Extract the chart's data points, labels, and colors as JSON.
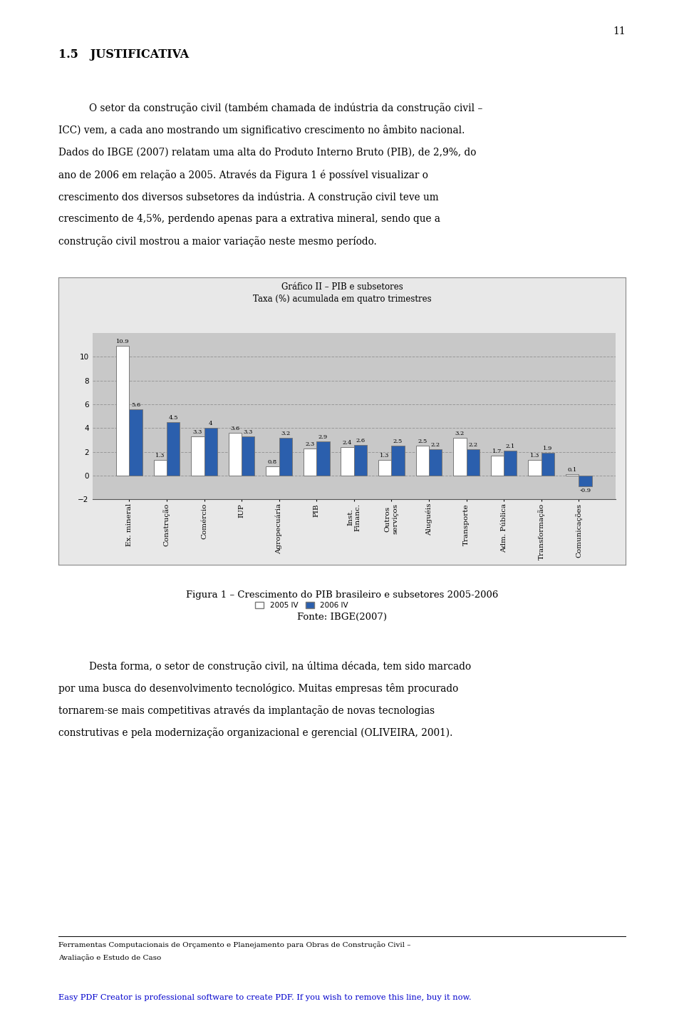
{
  "title_line1": "Gráfico II – PIB e subsetores",
  "title_line2": "Taxa (%) acumulada em quatro trimestres",
  "categories": [
    "Ex. mineral",
    "Construção",
    "Comércio",
    "IUP",
    "Agropecuária",
    "PIB",
    "Inst.\nFinanc.",
    "Outros\nserviços",
    "Aluguéis",
    "Transporte",
    "Adm. Pública",
    "Transformação",
    "Comunicações"
  ],
  "values_2005": [
    10.9,
    1.3,
    3.3,
    3.6,
    0.8,
    2.3,
    2.4,
    1.3,
    2.5,
    3.2,
    1.7,
    1.3,
    0.1
  ],
  "values_2006": [
    5.6,
    4.5,
    4.0,
    3.3,
    3.2,
    2.9,
    2.6,
    2.5,
    2.2,
    2.2,
    2.1,
    1.9,
    -0.9
  ],
  "color_2005": "#ffffff",
  "color_2006": "#2b5fad",
  "bar_edge_color": "#777777",
  "plot_bg_color": "#c8c8c8",
  "outer_bg_color": "#e8e8e8",
  "ylim": [
    -2,
    12
  ],
  "yticks": [
    -2,
    0,
    2,
    4,
    6,
    8,
    10
  ],
  "grid_color": "#999999",
  "legend_label_2005": "2005 IV",
  "legend_label_2006": "2006 IV",
  "fig_caption": "Figura 1 – Crescimento do PIB brasileiro e subsetores 2005-2006",
  "fig_source": "Fonte: IBGE(2007)",
  "heading": "1.5   JUSTIFICATIVA",
  "body1_line1": "O setor da construção civil (também chamada de indústria da construção civil –",
  "body1_line2": "ICC) vem, a cada ano mostrando um significativo crescimento no âmbito nacional.",
  "body1_line3": "Dados do IBGE (2007) relatam uma alta do Produto Interno Bruto (PIB), de 2,9%, do",
  "body1_line4": "ano de 2006 em relação a 2005. Através da Figura 1 é possível visualizar o",
  "body1_line5": "crescimento dos diversos subsetores da indústria. A construção civil teve um",
  "body1_line6": "crescimento de 4,5%, perdendo apenas para a extrativa mineral, sendo que a",
  "body1_line7": "construção civil mostrou a maior variação neste mesmo período.",
  "body2_line1": "Desta forma, o setor de construção civil, na última década, tem sido marcado",
  "body2_line2": "por uma busca do desenvolvimento tecnológico. Muitas empresas têm procurado",
  "body2_line3": "tornarem-se mais competitivas através da implantação de novas tecnologias",
  "body2_line4": "construtivas e pela modernização organizacional e gerencial (OLIVEIRA, 2001).",
  "footer_line1": "Ferramentas Computacionais de Orçamento e Planejamento para Obras de Construção Civil –",
  "footer_line2": "Avaliação e Estudo de Caso",
  "pdf_line": "Easy PDF Creator is professional software to create PDF. If you wish to remove this line, buy it now.",
  "page_number": "11"
}
